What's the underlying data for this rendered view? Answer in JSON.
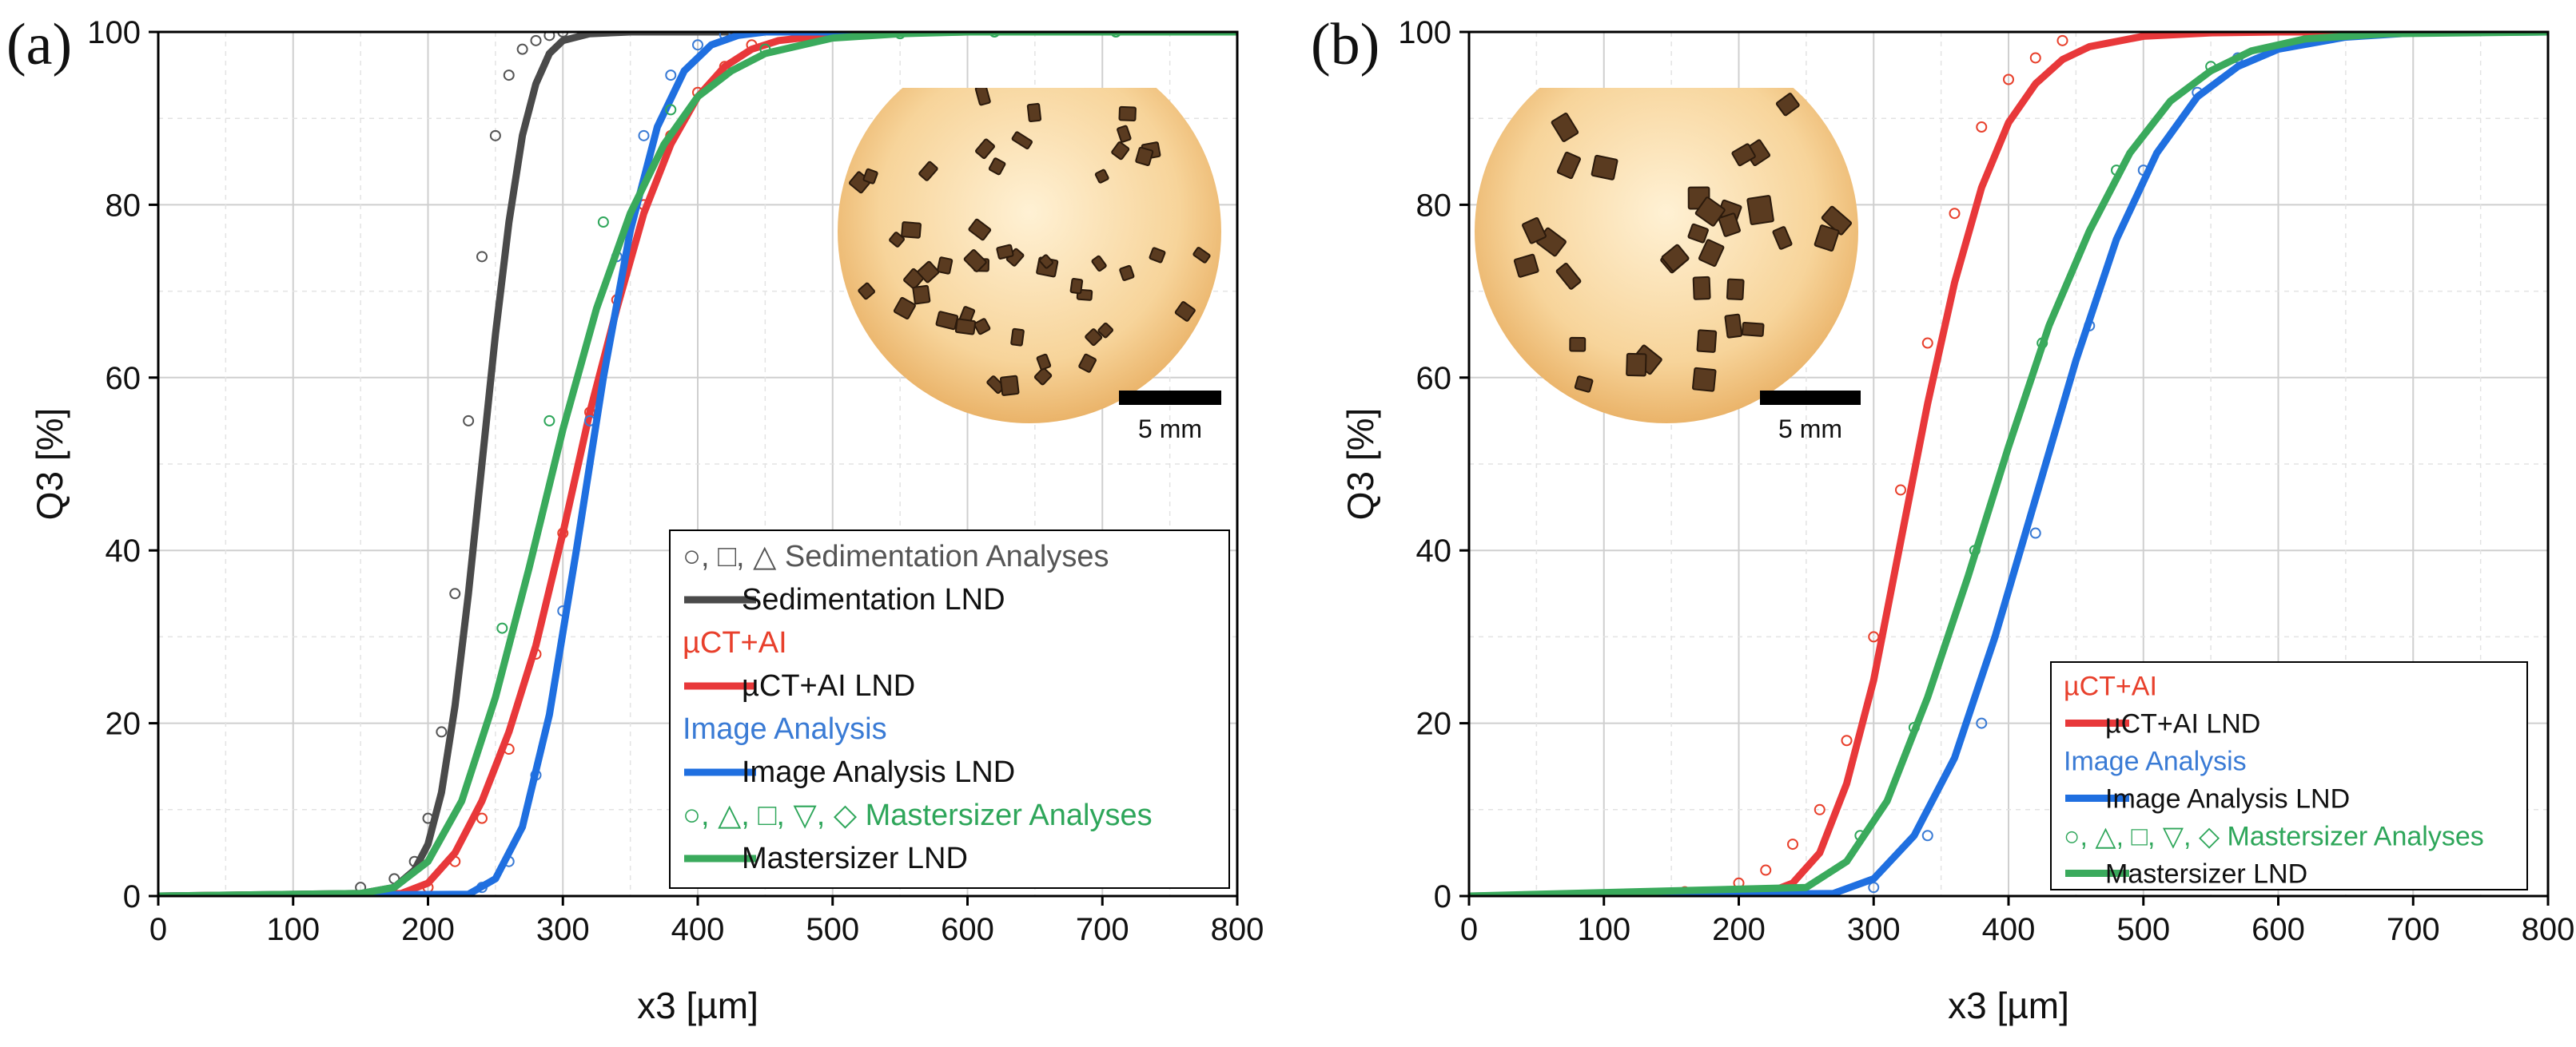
{
  "chart_data": [
    {
      "type": "line",
      "panel_label": "(a)",
      "xlabel": "x3 [µm]",
      "ylabel": "Q3 [%]",
      "xlim": [
        0,
        800
      ],
      "ylim": [
        0,
        100
      ],
      "x_ticks": [
        0,
        100,
        200,
        300,
        400,
        500,
        600,
        700,
        800
      ],
      "y_ticks": [
        0,
        20,
        40,
        60,
        80,
        100
      ],
      "grid": true,
      "legend_position": "lower-right",
      "inset": {
        "description": "microscope image of crystals",
        "scale_bar_label": "5 mm"
      },
      "series": [
        {
          "name": "○, □, △ Sedimentation Analyses",
          "kind": "markers",
          "color": "#555555",
          "x": [
            150,
            175,
            190,
            200,
            210,
            220,
            230,
            240,
            250,
            260,
            270,
            280,
            290,
            300
          ],
          "y": [
            1,
            2,
            4,
            9,
            19,
            35,
            55,
            74,
            88,
            95,
            98,
            99,
            99.6,
            100
          ]
        },
        {
          "name": "Sedimentation LND",
          "kind": "line",
          "color": "#4a4a4a",
          "x": [
            0,
            150,
            175,
            190,
            200,
            210,
            220,
            230,
            240,
            250,
            260,
            270,
            280,
            290,
            300,
            320,
            350,
            800
          ],
          "y": [
            0,
            0.3,
            1,
            3,
            6,
            12,
            22,
            35,
            50,
            65,
            78,
            88,
            94,
            97.5,
            99,
            99.8,
            100,
            100
          ]
        },
        {
          "name": "µCT+AI",
          "kind": "markers",
          "color": "#e8402c",
          "x": [
            200,
            220,
            240,
            260,
            280,
            300,
            320,
            340,
            360,
            380,
            400,
            420,
            440
          ],
          "y": [
            1,
            4,
            9,
            17,
            28,
            42,
            56,
            69,
            80,
            88,
            93,
            96,
            98.5
          ]
        },
        {
          "name": "µCT+AI LND",
          "kind": "line",
          "color": "#e8383a",
          "x": [
            0,
            180,
            200,
            220,
            240,
            260,
            280,
            300,
            320,
            340,
            360,
            380,
            400,
            420,
            440,
            460,
            500,
            550,
            600,
            800
          ],
          "y": [
            0,
            0.3,
            1.5,
            5,
            11,
            19,
            29,
            42,
            56,
            68,
            79,
            87,
            92.5,
            96,
            98,
            99,
            99.7,
            99.9,
            100,
            100
          ]
        },
        {
          "name": "Image Analysis",
          "kind": "markers",
          "color": "#3a7bd5",
          "x": [
            240,
            260,
            280,
            300,
            320,
            340,
            360,
            380,
            400,
            420
          ],
          "y": [
            1,
            4,
            14,
            33,
            55,
            74,
            88,
            95,
            98.5,
            99.7
          ]
        },
        {
          "name": "Image Analysis LND",
          "kind": "line",
          "color": "#1f6fe0",
          "x": [
            0,
            230,
            250,
            270,
            290,
            310,
            330,
            350,
            370,
            390,
            410,
            430,
            450,
            800
          ],
          "y": [
            0,
            0.2,
            2,
            8,
            21,
            40,
            60,
            77,
            89,
            95.5,
            98.5,
            99.6,
            100,
            100
          ]
        },
        {
          "name": "○, △, □, ▽, ◇ Mastersizer Analyses",
          "kind": "markers",
          "color": "#2ea65a",
          "x": [
            255,
            290,
            330,
            380,
            450,
            550,
            620,
            710
          ],
          "y": [
            31,
            55,
            78,
            91,
            98,
            99.8,
            100,
            100
          ]
        },
        {
          "name": "Mastersizer LND",
          "kind": "line",
          "color": "#3aaa5c",
          "x": [
            0,
            150,
            175,
            200,
            225,
            250,
            275,
            300,
            325,
            350,
            375,
            400,
            425,
            450,
            500,
            550,
            600,
            800
          ],
          "y": [
            0,
            0.3,
            1,
            4,
            11,
            23,
            38,
            54,
            68,
            79,
            87,
            92.5,
            95.5,
            97.5,
            99.3,
            99.8,
            100,
            100
          ]
        }
      ]
    },
    {
      "type": "line",
      "panel_label": "(b)",
      "xlabel": "x3 [µm]",
      "ylabel": "Q3 [%]",
      "xlim": [
        0,
        800
      ],
      "ylim": [
        0,
        100
      ],
      "x_ticks": [
        0,
        100,
        200,
        300,
        400,
        500,
        600,
        700,
        800
      ],
      "y_ticks": [
        0,
        20,
        40,
        60,
        80,
        100
      ],
      "grid": true,
      "legend_position": "lower-right",
      "inset": {
        "description": "microscope image of crystals",
        "scale_bar_label": "5 mm"
      },
      "series": [
        {
          "name": "µCT+AI",
          "kind": "markers",
          "color": "#e8402c",
          "x": [
            160,
            200,
            220,
            240,
            260,
            280,
            300,
            320,
            340,
            360,
            380,
            400,
            420,
            440
          ],
          "y": [
            0.5,
            1.5,
            3,
            6,
            10,
            18,
            30,
            47,
            64,
            79,
            89,
            94.5,
            97,
            99
          ]
        },
        {
          "name": "µCT+AI LND",
          "kind": "line",
          "color": "#e8383a",
          "x": [
            0,
            220,
            240,
            260,
            280,
            300,
            320,
            340,
            360,
            380,
            400,
            420,
            440,
            460,
            500,
            550,
            600,
            800
          ],
          "y": [
            0,
            0.3,
            1.5,
            5,
            13,
            25,
            41,
            57,
            71,
            82,
            89.5,
            94,
            96.8,
            98.3,
            99.5,
            99.9,
            100,
            100
          ]
        },
        {
          "name": "Image Analysis",
          "kind": "markers",
          "color": "#3a7bd5",
          "x": [
            300,
            340,
            380,
            420,
            460,
            500,
            540,
            570
          ],
          "y": [
            1,
            7,
            20,
            42,
            66,
            84,
            93,
            97
          ]
        },
        {
          "name": "Image Analysis LND",
          "kind": "line",
          "color": "#1f6fe0",
          "x": [
            0,
            270,
            300,
            330,
            360,
            390,
            420,
            450,
            480,
            510,
            540,
            570,
            600,
            650,
            700,
            800
          ],
          "y": [
            0,
            0.3,
            2,
            7,
            16,
            30,
            46,
            62,
            76,
            86,
            92.5,
            96,
            98,
            99.4,
            99.9,
            100
          ]
        },
        {
          "name": "○, △, □, ▽, ◇ Mastersizer Analyses",
          "kind": "markers",
          "color": "#2ea65a",
          "x": [
            290,
            330,
            375,
            425,
            480,
            550
          ],
          "y": [
            7,
            19.5,
            40,
            64,
            84,
            96
          ]
        },
        {
          "name": "Mastersizer LND",
          "kind": "line",
          "color": "#3aaa5c",
          "x": [
            0,
            250,
            280,
            310,
            340,
            370,
            400,
            430,
            460,
            490,
            520,
            550,
            580,
            620,
            680,
            800
          ],
          "y": [
            0,
            1,
            4,
            11,
            23,
            37,
            52,
            66,
            77,
            86,
            92,
            95.5,
            97.8,
            99.2,
            99.8,
            100
          ]
        }
      ]
    }
  ]
}
